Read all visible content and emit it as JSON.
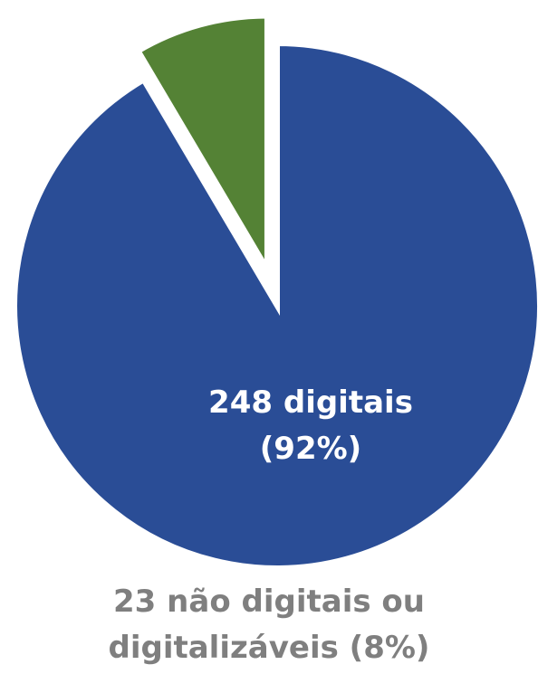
{
  "chart_data": {
    "type": "pie",
    "values": [
      248,
      23
    ],
    "value_labels": [
      "248 digitais (92%)",
      "23 não digitais ou digitalizáveis (8%)"
    ],
    "colors": [
      "#2a4d96",
      "#548235"
    ]
  }
}
